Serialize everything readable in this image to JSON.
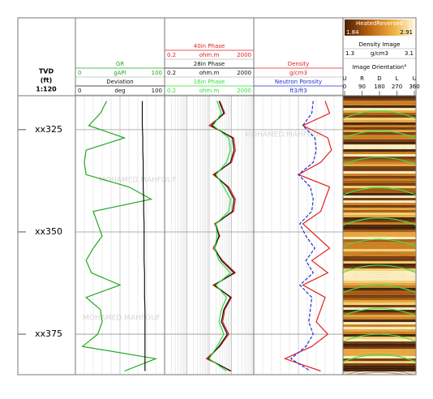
{
  "chart_data": {
    "type": "well-log",
    "depth_header": [
      "TVD",
      "(ft)",
      "1:120"
    ],
    "ylim": [
      316.7,
      384.9
    ],
    "yticks": [
      {
        "value": 325,
        "label": "xx325"
      },
      {
        "value": 350,
        "label": "xx350"
      },
      {
        "value": 375,
        "label": "xx375"
      }
    ],
    "grid": true,
    "watermark": "MOHAMED.MAHFOUF",
    "depths": [
      318,
      321,
      324,
      327,
      330,
      333,
      336,
      339,
      342,
      345,
      348,
      351,
      354,
      357,
      360,
      363,
      366,
      369,
      372,
      375,
      378,
      381,
      384
    ],
    "tracks": [
      {
        "series": [
          {
            "name": "GR",
            "color": "#22aa22",
            "unit": "gAPI",
            "xlim": [
              0,
              100
            ],
            "xticks": [
              0,
              100
            ],
            "values": [
              35,
              28,
              15,
              55,
              12,
              10,
              12,
              60,
              85,
              20,
              25,
              30,
              20,
              12,
              18,
              50,
              12,
              28,
              30,
              25,
              8,
              90,
              55
            ]
          },
          {
            "name": "Deviation",
            "color": "#111111",
            "unit": "deg",
            "xlim": [
              0,
              100
            ],
            "xticks": [
              0,
              100
            ],
            "values": [
              75,
              75,
              75,
              75.5,
              75.5,
              76,
              76,
              76,
              76.5,
              76.5,
              77,
              77,
              77,
              77,
              77.5,
              77.5,
              77.5,
              78,
              78,
              78,
              78,
              78,
              78
            ]
          }
        ]
      },
      {
        "log": true,
        "series": [
          {
            "name": "40in Phase",
            "color": "#e02020",
            "unit": "ohm.m",
            "xlim": [
              0.2,
              2000
            ],
            "xticks": [
              0.2,
              2000
            ],
            "values": [
              60,
              100,
              20,
              250,
              300,
              200,
              30,
              150,
              300,
              250,
              35,
              60,
              30,
              80,
              300,
              30,
              200,
              100,
              80,
              150,
              60,
              15,
              200
            ]
          },
          {
            "name": "28in Phase",
            "color": "#111111",
            "unit": "ohm.m",
            "xlim": [
              0.2,
              2000
            ],
            "xticks": [
              0.2,
              2000
            ],
            "values": [
              55,
              90,
              25,
              220,
              260,
              180,
              35,
              130,
              260,
              220,
              40,
              55,
              35,
              70,
              260,
              35,
              180,
              90,
              70,
              130,
              55,
              18,
              180
            ]
          },
          {
            "name": "16in Phase",
            "color": "#33dd33",
            "unit": "ohm.m",
            "xlim": [
              0.2,
              2000
            ],
            "xticks": [
              0.2,
              2000
            ],
            "values": [
              45,
              70,
              30,
              150,
              180,
              120,
              40,
              90,
              180,
              150,
              40,
              45,
              35,
              55,
              180,
              40,
              120,
              70,
              55,
              90,
              45,
              20,
              120
            ]
          }
        ]
      },
      {
        "series": [
          {
            "name": "Density",
            "color": "#e02020",
            "unit": "g/cm3",
            "xlim": [
              1.95,
              2.95
            ],
            "values": [
              2.75,
              2.8,
              2.5,
              2.78,
              2.82,
              2.7,
              2.45,
              2.8,
              2.75,
              2.7,
              2.5,
              2.65,
              2.8,
              2.6,
              2.78,
              2.5,
              2.75,
              2.7,
              2.65,
              2.78,
              2.6,
              2.3,
              2.7
            ]
          },
          {
            "name": "Neutron Porosity",
            "color": "#2030d0",
            "unit": "ft3/ft3",
            "dashed": true,
            "xlim": [
              0.45,
              -0.15
            ],
            "values": [
              0.05,
              0.06,
              0.12,
              0.04,
              0.03,
              0.05,
              0.15,
              0.07,
              0.05,
              0.06,
              0.14,
              0.1,
              0.04,
              0.1,
              0.05,
              0.14,
              0.06,
              0.07,
              0.08,
              0.05,
              0.1,
              0.2,
              0.07
            ]
          }
        ]
      }
    ],
    "image_track": {
      "palette": "HeatedReversed",
      "palette_range": [
        1.84,
        2.91
      ],
      "name": "Density Image",
      "unit": "g/cm3",
      "xticks": [
        1.3,
        3.1
      ],
      "orientation_title": "Image Orientation°",
      "orientation_labels": [
        "U",
        "R",
        "D",
        "L",
        "U"
      ],
      "angles": [
        0,
        90,
        180,
        270,
        360
      ]
    }
  }
}
